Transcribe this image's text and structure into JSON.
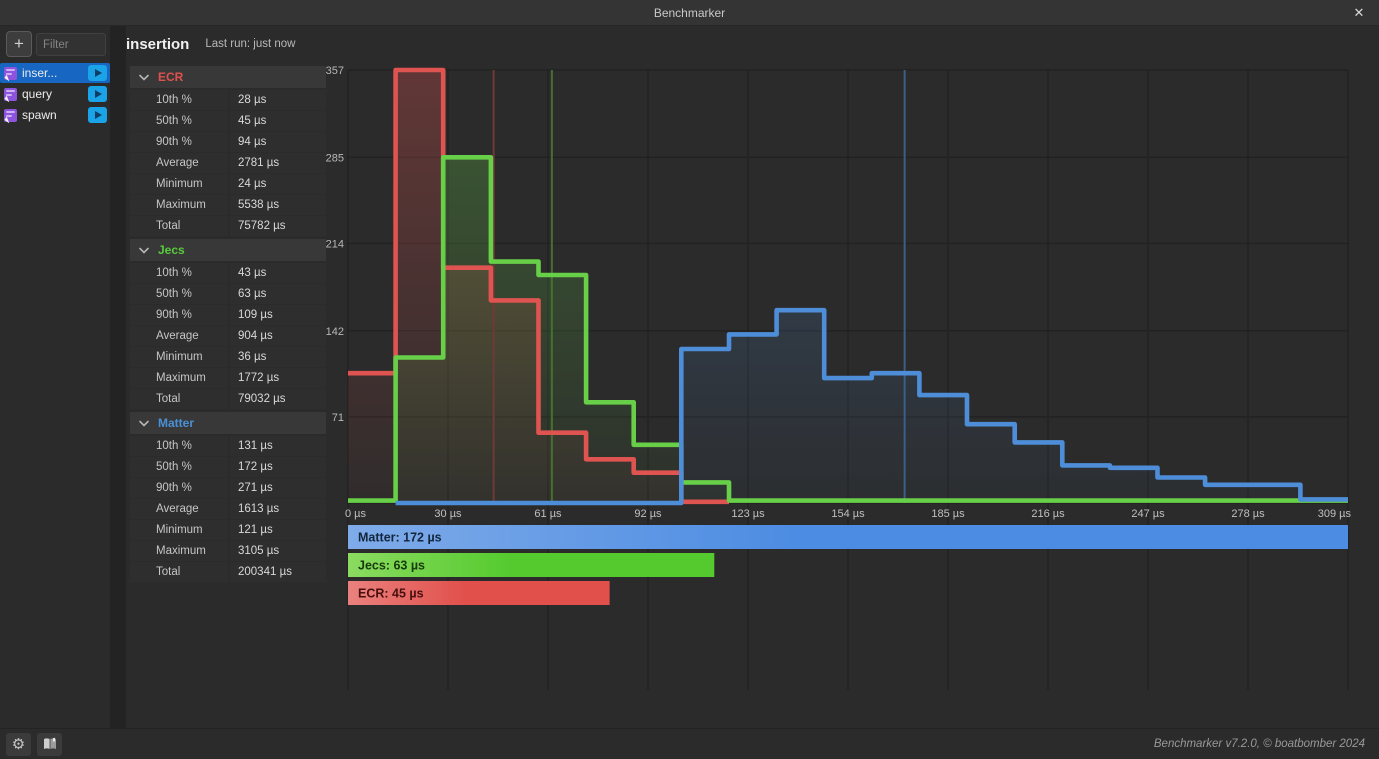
{
  "titlebar": {
    "title": "Benchmarker",
    "close_glyph": "✕"
  },
  "toolbar": {
    "add_label": "+",
    "filter_placeholder": "Filter"
  },
  "header": {
    "title": "insertion",
    "last_run": "Last run: just now"
  },
  "sidebar": {
    "items": [
      {
        "label": "inser...",
        "selected": true
      },
      {
        "label": "query",
        "selected": false
      },
      {
        "label": "spawn",
        "selected": false
      }
    ]
  },
  "stats": {
    "sections": [
      {
        "name": "ECR",
        "color": "#e0514e",
        "rows": [
          [
            "10th %",
            "28 µs"
          ],
          [
            "50th %",
            "45 µs"
          ],
          [
            "90th %",
            "94 µs"
          ],
          [
            "Average",
            "2781 µs"
          ],
          [
            "Minimum",
            "24 µs"
          ],
          [
            "Maximum",
            "5538 µs"
          ],
          [
            "Total",
            "75782 µs"
          ]
        ]
      },
      {
        "name": "Jecs",
        "color": "#58cb3c",
        "rows": [
          [
            "10th %",
            "43 µs"
          ],
          [
            "50th %",
            "63 µs"
          ],
          [
            "90th %",
            "109 µs"
          ],
          [
            "Average",
            "904 µs"
          ],
          [
            "Minimum",
            "36 µs"
          ],
          [
            "Maximum",
            "1772 µs"
          ],
          [
            "Total",
            "79032 µs"
          ]
        ]
      },
      {
        "name": "Matter",
        "color": "#4a90d9",
        "rows": [
          [
            "10th %",
            "131 µs"
          ],
          [
            "50th %",
            "172 µs"
          ],
          [
            "90th %",
            "271 µs"
          ],
          [
            "Average",
            "1613 µs"
          ],
          [
            "Minimum",
            "121 µs"
          ],
          [
            "Maximum",
            "3105 µs"
          ],
          [
            "Total",
            "200341 µs"
          ]
        ]
      }
    ]
  },
  "chart_data": {
    "type": "step-histogram",
    "x_unit": "µs",
    "xlim": [
      0,
      309
    ],
    "ylim": [
      0,
      357
    ],
    "bucket_count": 21,
    "x_ticks": [
      "0 µs",
      "30 µs",
      "61 µs",
      "92 µs",
      "123 µs",
      "154 µs",
      "185 µs",
      "216 µs",
      "247 µs",
      "278 µs",
      "309 µs"
    ],
    "x_tick_values": [
      0,
      30.9,
      61.8,
      92.7,
      123.6,
      154.5,
      185.4,
      216.3,
      247.2,
      278.1,
      309
    ],
    "y_ticks": [
      0,
      71,
      142,
      214,
      285,
      357
    ],
    "grid": true,
    "series": [
      {
        "name": "ECR",
        "color": "#df5450",
        "median_line_color": "#6f3937",
        "median_us": 45,
        "start_bucket": 0,
        "values": [
          107,
          357,
          194,
          167,
          58,
          36,
          25,
          1
        ]
      },
      {
        "name": "Jecs",
        "color": "#67cf48",
        "median_line_color": "#45702e",
        "median_us": 63,
        "start_bucket": 0,
        "values": [
          2,
          120,
          285,
          199,
          188,
          83,
          48,
          17,
          2,
          2,
          2,
          2,
          2,
          2,
          2,
          2,
          2,
          2,
          2,
          2,
          2
        ]
      },
      {
        "name": "Matter",
        "color": "#4e8ed9",
        "median_line_color": "#3c5f88",
        "median_us": 172,
        "start_bucket": 1,
        "values": [
          0,
          0,
          0,
          0,
          0,
          0,
          127,
          139,
          159,
          103,
          107,
          89,
          65,
          50,
          31,
          29,
          21,
          15,
          15,
          3
        ]
      }
    ],
    "median_bars": [
      {
        "name": "Matter",
        "label": "Matter: 172 µs",
        "value_us": 172,
        "color_from": "#7fabe9",
        "color_to": "#4c8ce2",
        "text_color": "#13263c"
      },
      {
        "name": "Jecs",
        "label": "Jecs: 63 µs",
        "value_us": 63,
        "color_from": "#8bdb60",
        "color_to": "#54ca2e",
        "text_color": "#173a0d"
      },
      {
        "name": "ECR",
        "label": "ECR: 45 µs",
        "value_us": 45,
        "color_from": "#ea817e",
        "color_to": "#e1504b",
        "text_color": "#47100f"
      }
    ]
  },
  "footer": {
    "version": "Benchmarker v7.2.0, © boatbomber 2024"
  }
}
